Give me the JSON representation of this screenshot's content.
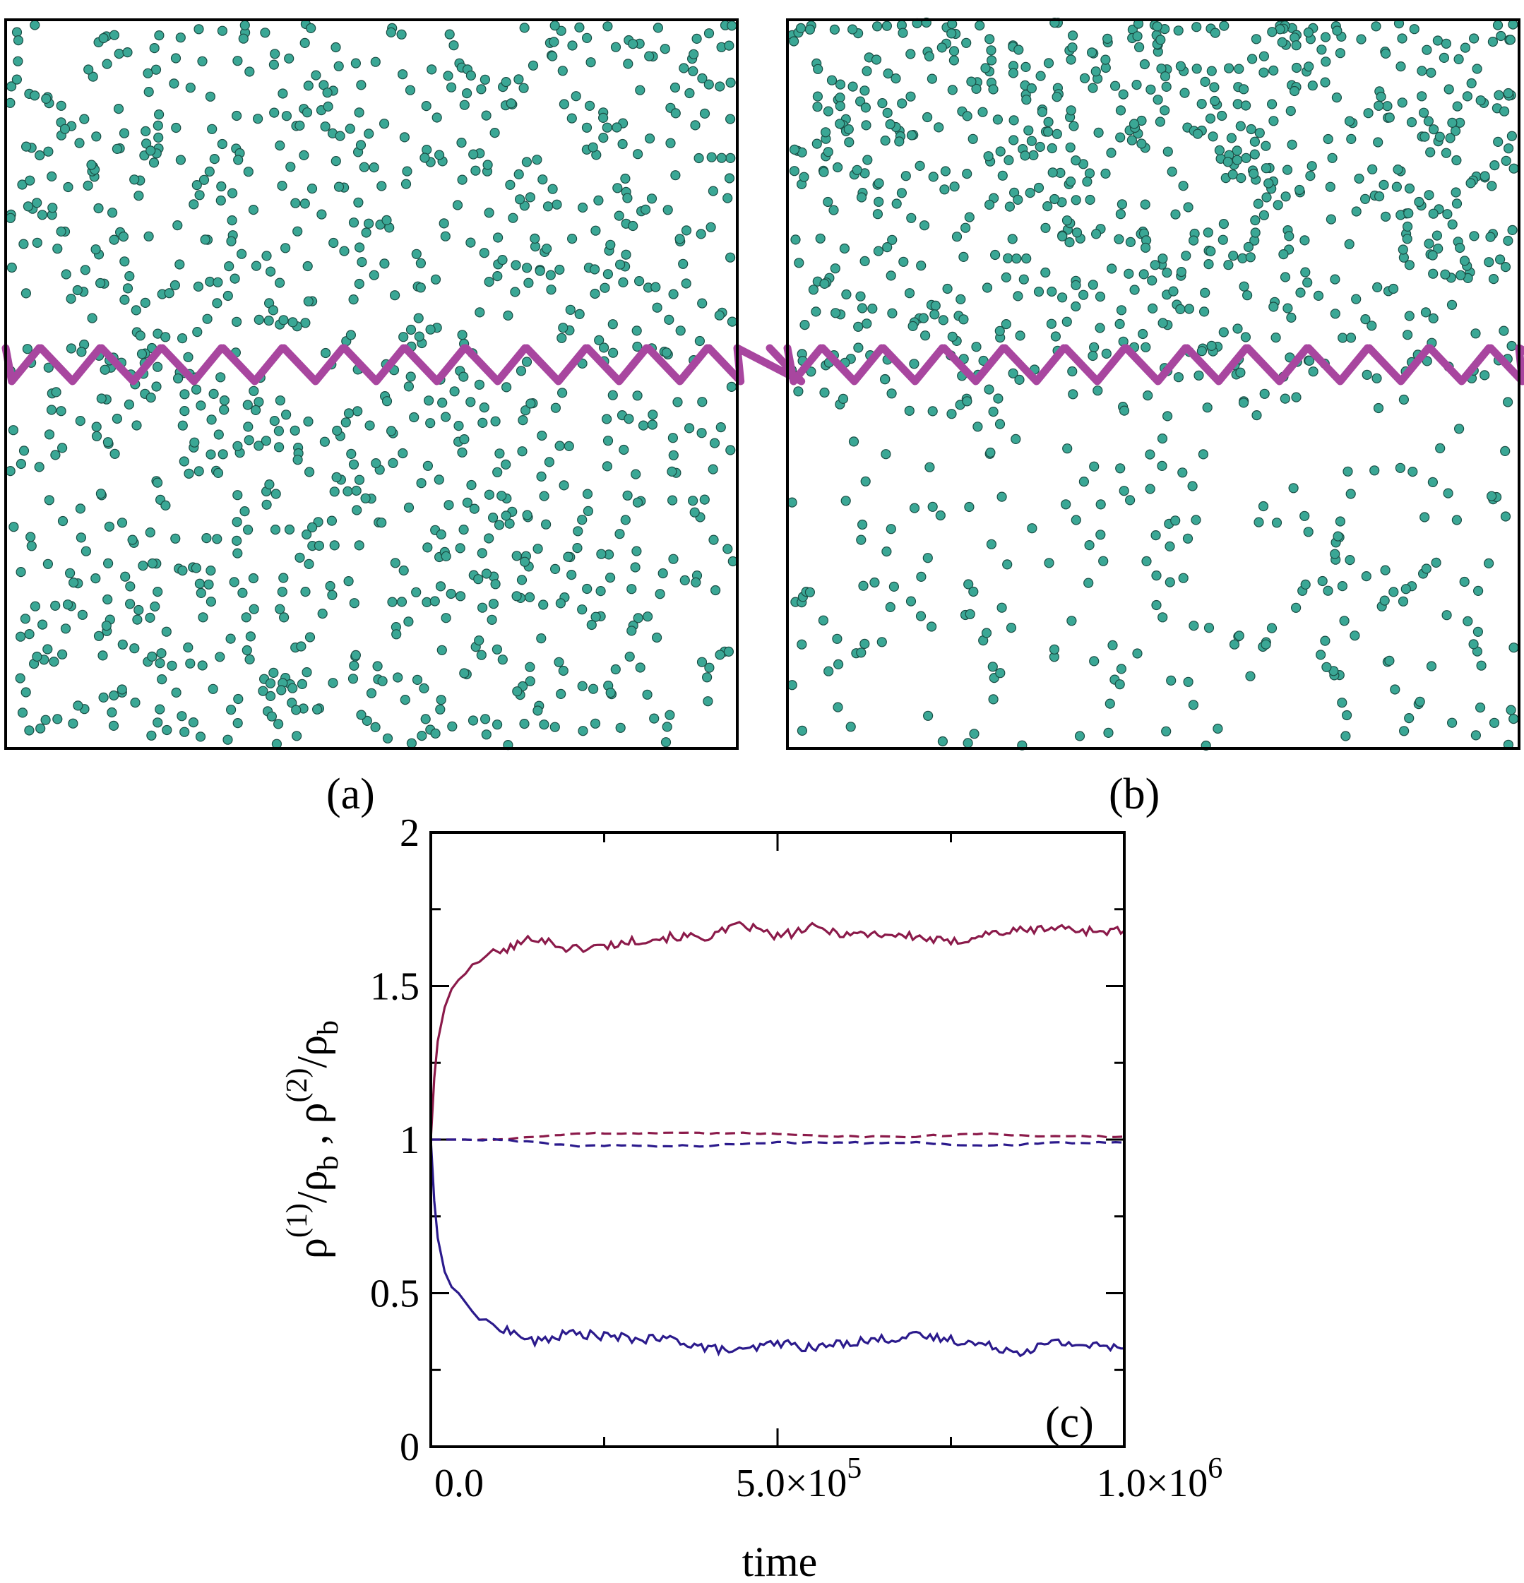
{
  "panels": {
    "a": {
      "label": "(a)"
    },
    "b": {
      "label": "(b)"
    }
  },
  "colors": {
    "particle_fill": "#3aa795",
    "particle_edge": "#1a4d44",
    "ratchet": "#a8469f",
    "rho1": "#8b1a4a",
    "rho2": "#2b1a8c",
    "rho1_dashed": "#8b1a4a",
    "rho2_dashed": "#2b1a8c"
  },
  "chart_data": {
    "type": "line",
    "panel_label": "(c)",
    "xlabel": "time",
    "ylabel": "ρ(1)/ρb , ρ(2)/ρb",
    "ylabel_parts": {
      "rho": "ρ",
      "sup1": "(1)",
      "sup2": "(2)",
      "sub_b": "b",
      "sep": "/",
      "comma": " , "
    },
    "xlim": [
      0,
      1000000
    ],
    "ylim": [
      0,
      2
    ],
    "x_ticks": [
      {
        "value": 0,
        "label": "0.0"
      },
      {
        "value": 500000,
        "label": "5.0×10",
        "exp": "5"
      },
      {
        "value": 1000000,
        "label": "1.0×10",
        "exp": "6"
      }
    ],
    "y_ticks": [
      {
        "value": 0,
        "label": "0"
      },
      {
        "value": 0.5,
        "label": "0.5"
      },
      {
        "value": 1,
        "label": "1"
      },
      {
        "value": 1.5,
        "label": "1.5"
      },
      {
        "value": 2,
        "label": "2"
      }
    ],
    "series": [
      {
        "name": "rho1_upper_solid",
        "style": "solid",
        "color": "#8b1a4a",
        "x": [
          0,
          5000,
          10000,
          20000,
          30000,
          40000,
          50000,
          60000,
          80000,
          100000,
          150000,
          200000,
          250000,
          300000,
          350000,
          400000,
          450000,
          500000,
          550000,
          600000,
          650000,
          700000,
          750000,
          800000,
          850000,
          900000,
          950000,
          1000000
        ],
        "y": [
          1.0,
          1.2,
          1.32,
          1.43,
          1.49,
          1.52,
          1.54,
          1.57,
          1.6,
          1.61,
          1.66,
          1.62,
          1.63,
          1.65,
          1.66,
          1.66,
          1.7,
          1.66,
          1.69,
          1.67,
          1.67,
          1.66,
          1.64,
          1.67,
          1.68,
          1.69,
          1.68,
          1.68
        ]
      },
      {
        "name": "rho2_lower_solid",
        "style": "solid",
        "color": "#2b1a8c",
        "x": [
          0,
          5000,
          10000,
          20000,
          30000,
          40000,
          50000,
          60000,
          80000,
          100000,
          150000,
          200000,
          250000,
          300000,
          350000,
          400000,
          450000,
          500000,
          550000,
          600000,
          650000,
          700000,
          750000,
          800000,
          850000,
          900000,
          950000,
          1000000
        ],
        "y": [
          1.0,
          0.8,
          0.68,
          0.57,
          0.52,
          0.5,
          0.47,
          0.44,
          0.4,
          0.39,
          0.34,
          0.37,
          0.36,
          0.35,
          0.35,
          0.32,
          0.31,
          0.34,
          0.32,
          0.34,
          0.35,
          0.36,
          0.35,
          0.33,
          0.31,
          0.34,
          0.33,
          0.32
        ]
      },
      {
        "name": "rho1_dashed",
        "style": "dashed",
        "color": "#8b1a4a",
        "x": [
          0,
          100000,
          200000,
          300000,
          400000,
          500000,
          600000,
          700000,
          800000,
          900000,
          1000000
        ],
        "y": [
          1.0,
          1.0,
          1.02,
          1.02,
          1.02,
          1.02,
          1.01,
          1.01,
          1.02,
          1.01,
          1.01
        ]
      },
      {
        "name": "rho2_dashed",
        "style": "dashed",
        "color": "#2b1a8c",
        "x": [
          0,
          100000,
          200000,
          300000,
          400000,
          500000,
          600000,
          700000,
          800000,
          900000,
          1000000
        ],
        "y": [
          1.0,
          1.0,
          0.98,
          0.98,
          0.98,
          0.99,
          0.99,
          0.99,
          0.98,
          0.99,
          0.99
        ]
      }
    ]
  }
}
